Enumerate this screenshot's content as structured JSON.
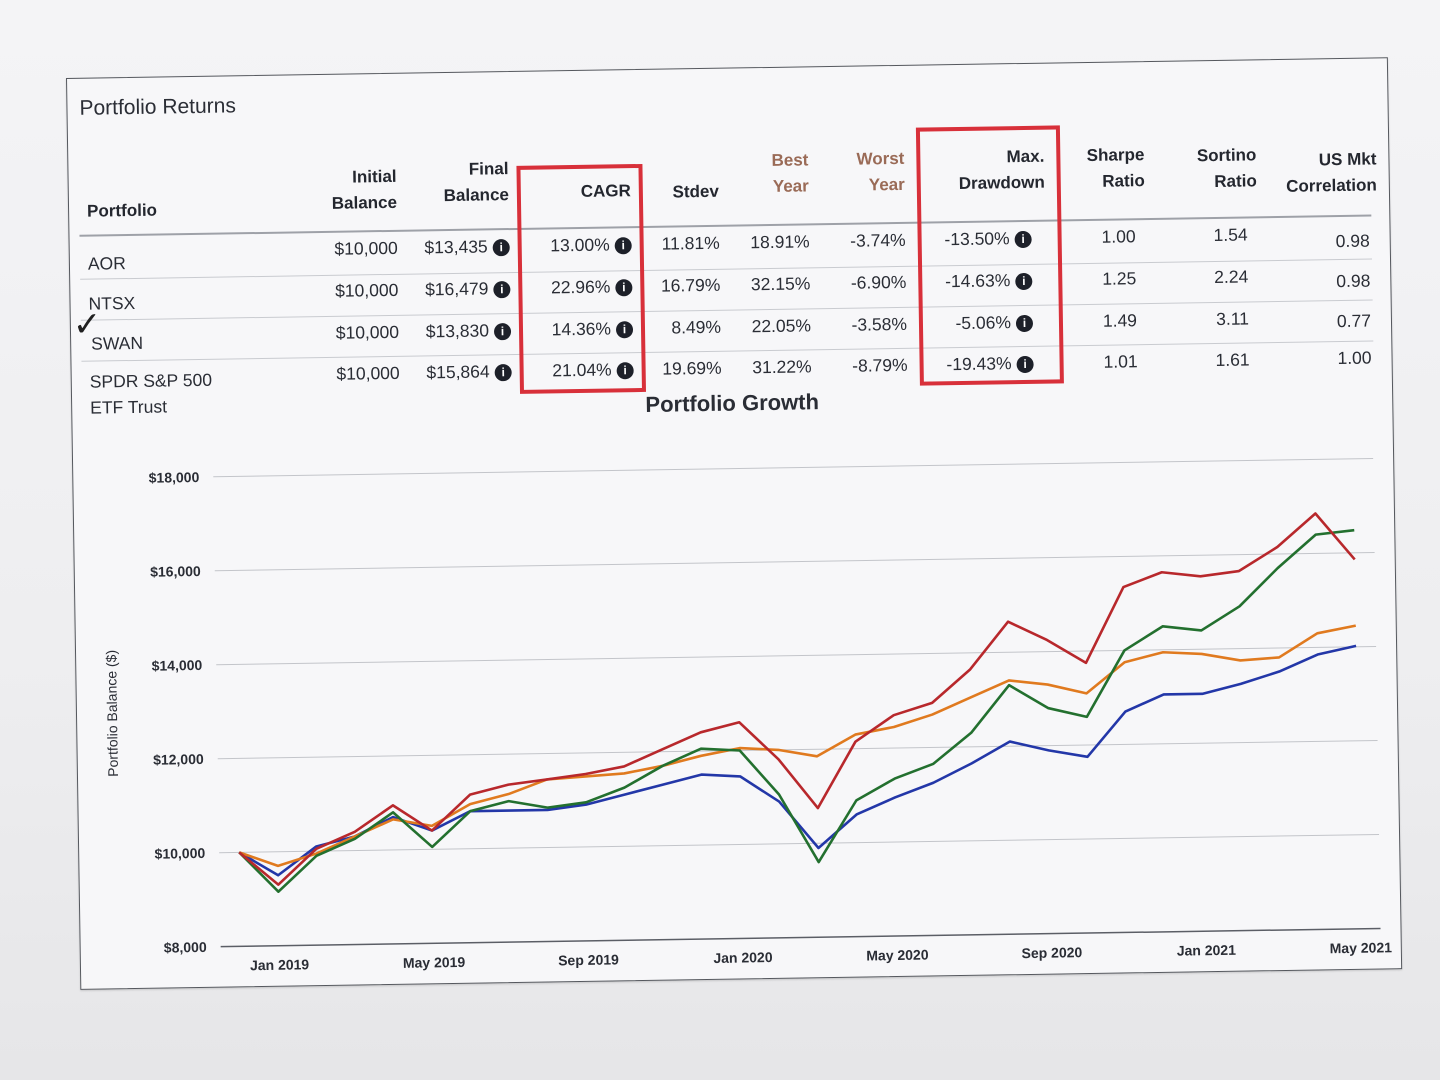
{
  "returns": {
    "title": "Portfolio Returns",
    "columns": [
      {
        "key": "portfolio",
        "label": "Portfolio"
      },
      {
        "key": "initial",
        "label": "Initial\nBalance"
      },
      {
        "key": "final",
        "label": "Final\nBalance"
      },
      {
        "key": "cagr",
        "label": "CAGR"
      },
      {
        "key": "stdev",
        "label": "Stdev"
      },
      {
        "key": "best",
        "label": "Best\nYear"
      },
      {
        "key": "worst",
        "label": "Worst\nYear"
      },
      {
        "key": "maxdd",
        "label": "Max.\nDrawdown"
      },
      {
        "key": "sharpe",
        "label": "Sharpe\nRatio"
      },
      {
        "key": "sortino",
        "label": "Sortino\nRatio"
      },
      {
        "key": "corr",
        "label": "US Mkt\nCorrelation"
      }
    ],
    "rows": [
      {
        "portfolio": "AOR",
        "initial": "$10,000",
        "final": "$13,435",
        "cagr": "13.00%",
        "stdev": "11.81%",
        "best": "18.91%",
        "worst": "-3.74%",
        "maxdd": "-13.50%",
        "sharpe": "1.00",
        "sortino": "1.54",
        "corr": "0.98"
      },
      {
        "portfolio": "NTSX",
        "initial": "$10,000",
        "final": "$16,479",
        "cagr": "22.96%",
        "stdev": "16.79%",
        "best": "32.15%",
        "worst": "-6.90%",
        "maxdd": "-14.63%",
        "sharpe": "1.25",
        "sortino": "2.24",
        "corr": "0.98"
      },
      {
        "portfolio": "SWAN",
        "initial": "$10,000",
        "final": "$13,830",
        "cagr": "14.36%",
        "stdev": "8.49%",
        "best": "22.05%",
        "worst": "-3.58%",
        "maxdd": "-5.06%",
        "sharpe": "1.49",
        "sortino": "3.11",
        "corr": "0.77"
      },
      {
        "portfolio": "SPDR S&P 500\nETF Trust",
        "initial": "$10,000",
        "final": "$15,864",
        "cagr": "21.04%",
        "stdev": "19.69%",
        "best": "31.22%",
        "worst": "-8.79%",
        "maxdd": "-19.43%",
        "sharpe": "1.01",
        "sortino": "1.61",
        "corr": "1.00"
      }
    ],
    "check_mark": "✓",
    "info_glyph": "i",
    "highlight_color": "#d8303a"
  },
  "chart_data": {
    "type": "line",
    "title": "Portfolio Growth",
    "ylabel": "Portfolio Balance ($)",
    "xlabel": "",
    "ylim": [
      8000,
      18000
    ],
    "yticks": [
      8000,
      10000,
      12000,
      14000,
      16000,
      18000
    ],
    "ytick_labels": [
      "$8,000",
      "$10,000",
      "$12,000",
      "$14,000",
      "$16,000",
      "$18,000"
    ],
    "x": [
      "Dec 2018",
      "Jan 2019",
      "Feb 2019",
      "Mar 2019",
      "Apr 2019",
      "May 2019",
      "Jun 2019",
      "Jul 2019",
      "Aug 2019",
      "Sep 2019",
      "Oct 2019",
      "Nov 2019",
      "Dec 2019",
      "Jan 2020",
      "Feb 2020",
      "Mar 2020",
      "Apr 2020",
      "May 2020",
      "Jun 2020",
      "Jul 2020",
      "Aug 2020",
      "Sep 2020",
      "Oct 2020",
      "Nov 2020",
      "Dec 2020",
      "Jan 2021",
      "Feb 2021",
      "Mar 2021",
      "Apr 2021",
      "May 2021"
    ],
    "xtick_labels": [
      "Jan 2019",
      "May 2019",
      "Sep 2019",
      "Jan 2020",
      "May 2020",
      "Sep 2020",
      "Jan 2021",
      "May 2021"
    ],
    "xtick_index": [
      1,
      5,
      9,
      13,
      17,
      21,
      25,
      29
    ],
    "grid": true,
    "legend": "none",
    "series": [
      {
        "color": "#2337a8",
        "values": [
          10000,
          9500,
          10100,
          10300,
          10700,
          10400,
          10800,
          10800,
          10800,
          10900,
          11100,
          11300,
          11500,
          11450,
          10900,
          9900,
          10600,
          10950,
          11250,
          11650,
          12100,
          11900,
          11750,
          12700,
          13050,
          13050,
          13250,
          13500,
          13850,
          14020
        ]
      },
      {
        "color": "#e07a1f",
        "values": [
          10000,
          9700,
          9950,
          10300,
          10650,
          10500,
          10950,
          11150,
          11450,
          11500,
          11550,
          11700,
          11900,
          12050,
          12000,
          11850,
          12300,
          12450,
          12700,
          13050,
          13400,
          13300,
          13100,
          13750,
          13950,
          13900,
          13750,
          13800,
          14300,
          14450
        ]
      },
      {
        "color": "#23702f",
        "values": [
          10000,
          9150,
          9900,
          10250,
          10800,
          10050,
          10800,
          11000,
          10850,
          10950,
          11250,
          11700,
          12050,
          12000,
          11050,
          9600,
          10900,
          11350,
          11650,
          12300,
          13300,
          12800,
          12600,
          14000,
          14500,
          14400,
          14900,
          15700,
          16400,
          16480
        ]
      },
      {
        "color": "#b8282c",
        "values": [
          10000,
          9300,
          10050,
          10400,
          10950,
          10400,
          11150,
          11350,
          11450,
          11550,
          11700,
          12050,
          12400,
          12600,
          11800,
          10750,
          12150,
          12700,
          12950,
          13650,
          14650,
          14250,
          13750,
          15350,
          15650,
          15550,
          15650,
          16150,
          16850,
          15860
        ]
      }
    ]
  }
}
